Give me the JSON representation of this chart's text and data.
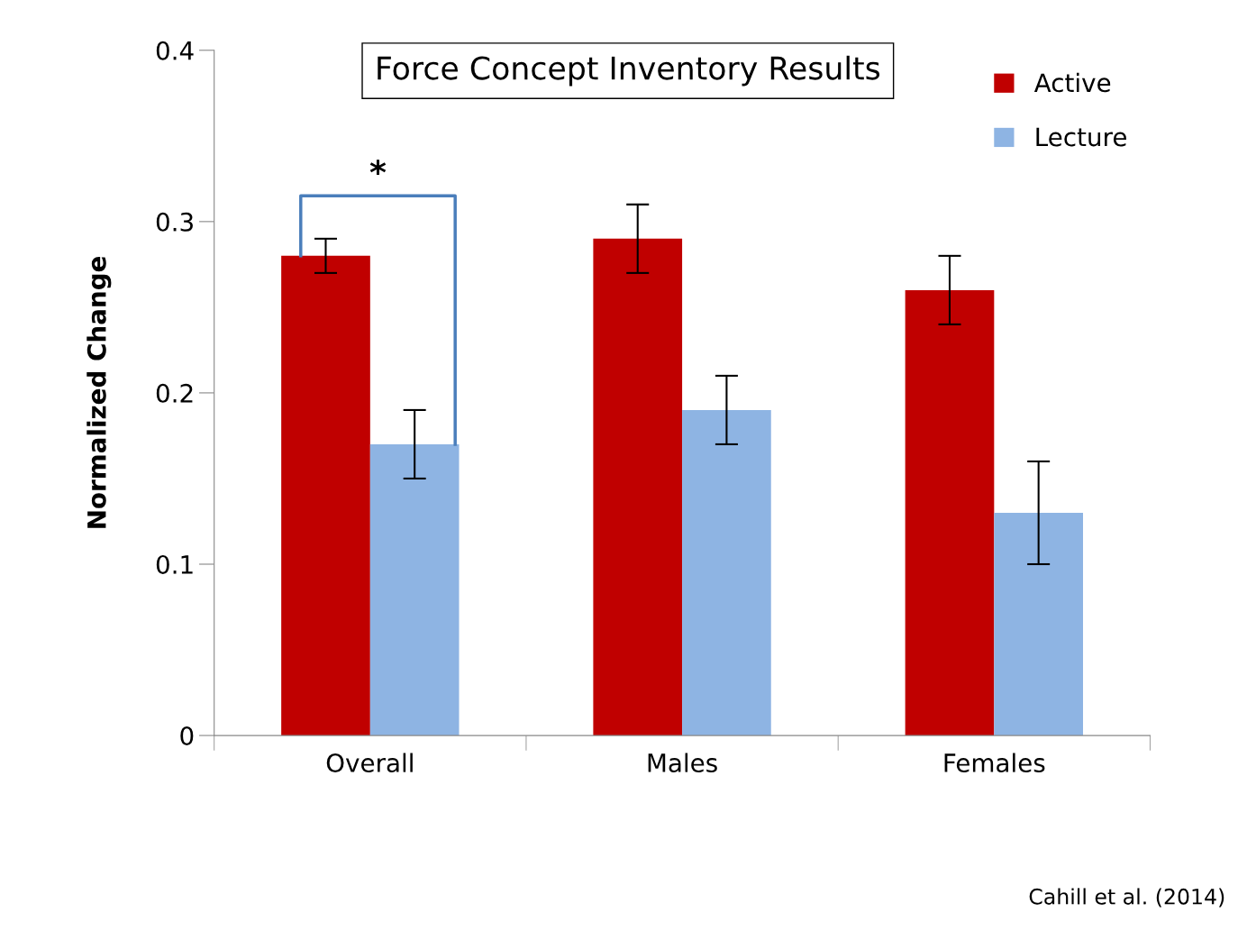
{
  "chart_data": {
    "type": "bar",
    "title": "Force Concept Inventory Results",
    "ylabel": "Normalized Change",
    "categories": [
      "Overall",
      "Males",
      "Females"
    ],
    "series": [
      {
        "name": "Active",
        "color": "#c00000",
        "values": [
          0.28,
          0.29,
          0.26
        ],
        "errors": [
          0.01,
          0.02,
          0.02
        ]
      },
      {
        "name": "Lecture",
        "color": "#8eb4e3",
        "values": [
          0.17,
          0.19,
          0.13
        ],
        "errors": [
          0.02,
          0.02,
          0.03
        ]
      }
    ],
    "ylim": [
      0,
      0.4
    ],
    "yticks": [
      {
        "value": 0,
        "label": "0"
      },
      0.1,
      0.2,
      0.3,
      0.4
    ],
    "annotations": [
      "*",
      "Cahill et al. (2014)"
    ],
    "grid": false,
    "legend": "top right"
  }
}
